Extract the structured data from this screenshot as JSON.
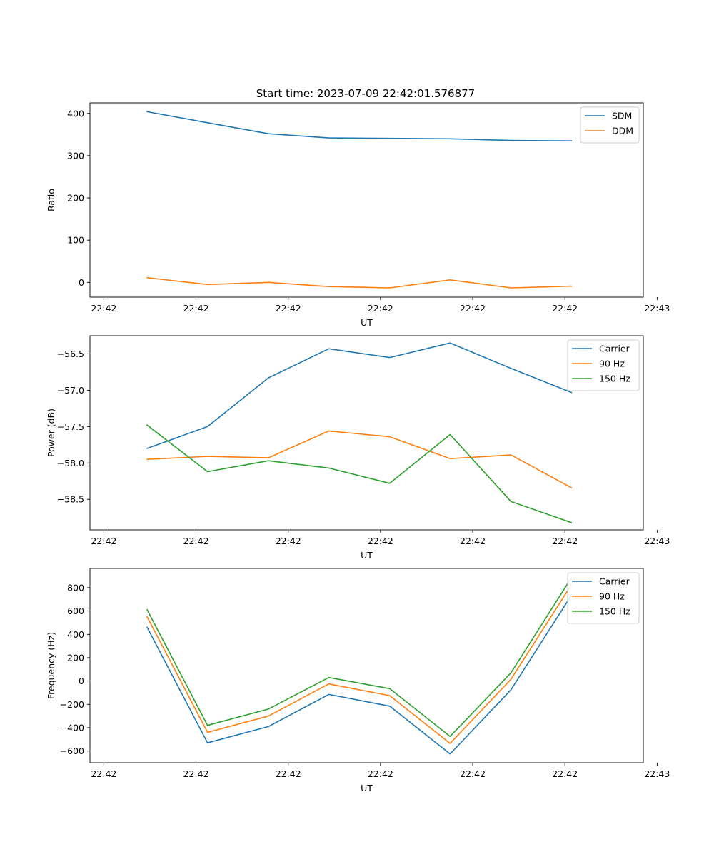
{
  "figure_title": "Start time: 2023-07-09 22:42:01.576877",
  "colors": {
    "blue": "#1f77b4",
    "orange": "#ff7f0e",
    "green": "#2ca02c"
  },
  "chart_data": [
    {
      "type": "line",
      "title": "Start time: 2023-07-09 22:42:01.576877",
      "xlabel": "UT",
      "ylabel": "Ratio",
      "xlim": [
        0,
        12
      ],
      "ylim": [
        -35,
        425
      ],
      "x_ticks": [
        0.3,
        2.3,
        4.3,
        6.3,
        8.3,
        10.3,
        12.3
      ],
      "x_tick_labels": [
        "22:42",
        "22:42",
        "22:42",
        "22:42",
        "22:42",
        "22:42",
        "22:43"
      ],
      "y_ticks": [
        0,
        100,
        200,
        300,
        400
      ],
      "y_tick_labels": [
        "0",
        "100",
        "200",
        "300",
        "400"
      ],
      "legend_position": "top-right",
      "x": [
        1.24,
        2.55,
        3.87,
        5.18,
        6.5,
        7.81,
        9.13,
        10.44
      ],
      "series": [
        {
          "name": "SDM",
          "color": "#1f77b4",
          "values": [
            404,
            378,
            352,
            342,
            341,
            340,
            336,
            335
          ]
        },
        {
          "name": "DDM",
          "color": "#ff7f0e",
          "values": [
            11,
            -5,
            0,
            -10,
            -13,
            6,
            -13,
            -9
          ]
        }
      ]
    },
    {
      "type": "line",
      "xlabel": "UT",
      "ylabel": "Power (dB)",
      "xlim": [
        0,
        12
      ],
      "ylim": [
        -58.92,
        -56.25
      ],
      "x_ticks": [
        0.3,
        2.3,
        4.3,
        6.3,
        8.3,
        10.3,
        12.3
      ],
      "x_tick_labels": [
        "22:42",
        "22:42",
        "22:42",
        "22:42",
        "22:42",
        "22:42",
        "22:43"
      ],
      "y_ticks": [
        -58.5,
        -58.0,
        -57.5,
        -57.0,
        -56.5
      ],
      "y_tick_labels": [
        "−58.5",
        "−58.0",
        "−57.5",
        "−57.0",
        "−56.5"
      ],
      "legend_position": "top-right",
      "x": [
        1.24,
        2.55,
        3.87,
        5.18,
        6.5,
        7.81,
        9.13,
        10.44
      ],
      "series": [
        {
          "name": "Carrier",
          "color": "#1f77b4",
          "values": [
            -57.8,
            -57.5,
            -56.83,
            -56.43,
            -56.55,
            -56.35,
            -56.7,
            -57.03
          ]
        },
        {
          "name": "90 Hz",
          "color": "#ff7f0e",
          "values": [
            -57.95,
            -57.91,
            -57.93,
            -57.56,
            -57.64,
            -57.94,
            -57.89,
            -58.34
          ]
        },
        {
          "name": "150 Hz",
          "color": "#2ca02c",
          "values": [
            -57.48,
            -58.12,
            -57.97,
            -58.07,
            -58.28,
            -57.61,
            -58.53,
            -58.82
          ]
        }
      ]
    },
    {
      "type": "line",
      "xlabel": "UT",
      "ylabel": "Frequency (Hz)",
      "xlim": [
        0,
        12
      ],
      "ylim": [
        -700,
        965
      ],
      "x_ticks": [
        0.3,
        2.3,
        4.3,
        6.3,
        8.3,
        10.3,
        12.3
      ],
      "x_tick_labels": [
        "22:42",
        "22:42",
        "22:42",
        "22:42",
        "22:42",
        "22:42",
        "22:43"
      ],
      "y_ticks": [
        -600,
        -400,
        -200,
        0,
        200,
        400,
        600,
        800
      ],
      "y_tick_labels": [
        "−600",
        "−400",
        "−200",
        "0",
        "200",
        "400",
        "600",
        "800"
      ],
      "legend_position": "top-right",
      "x": [
        1.24,
        2.55,
        3.87,
        5.18,
        6.5,
        7.81,
        9.13,
        10.44
      ],
      "series": [
        {
          "name": "Carrier",
          "color": "#1f77b4",
          "values": [
            460,
            -530,
            -390,
            -115,
            -215,
            -625,
            -75,
            735
          ]
        },
        {
          "name": "90 Hz",
          "color": "#ff7f0e",
          "values": [
            550,
            -440,
            -300,
            -25,
            -125,
            -535,
            15,
            825
          ]
        },
        {
          "name": "150 Hz",
          "color": "#2ca02c",
          "values": [
            610,
            -380,
            -240,
            30,
            -65,
            -475,
            70,
            885
          ]
        }
      ]
    }
  ]
}
